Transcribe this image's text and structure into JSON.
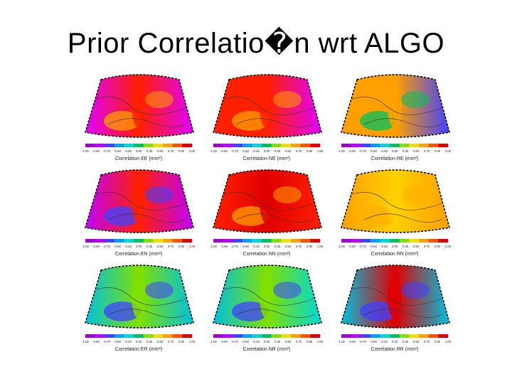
{
  "title": "Prior Correlatio�n wrt ALGO",
  "colorbar_ticks": [
    "-1.00",
    "-0.90",
    "-0.70",
    "-0.50",
    "-0.25",
    "0.00",
    "0.25",
    "0.50",
    "0.70",
    "0.90",
    "1.00"
  ],
  "colorbar_colors": [
    "#a000d0",
    "#c000ff",
    "#4040ff",
    "#00a0ff",
    "#00d8d8",
    "#00c060",
    "#80e000",
    "#f0e000",
    "#ffa000",
    "#ff5000",
    "#e00000"
  ],
  "chart_data": [
    {
      "type": "heatmap",
      "label": "Correlation EE (mm²)",
      "left_color": "#e000ff",
      "right_color": "#e000ff",
      "center_color": "#ff2000",
      "accent": "#ffa000"
    },
    {
      "type": "heatmap",
      "label": "Correlation NE (mm²)",
      "left_color": "#ff2000",
      "right_color": "#e000ff",
      "center_color": "#ff2000",
      "accent": "#ffa000"
    },
    {
      "type": "heatmap",
      "label": "Correlation RE (mm²)",
      "left_color": "#ffa000",
      "right_color": "#4040ff",
      "center_color": "#ffa000",
      "accent": "#00c060"
    },
    {
      "type": "heatmap",
      "label": "Correlation EN (mm²)",
      "left_color": "#c000ff",
      "right_color": "#c000ff",
      "center_color": "#ff2000",
      "accent": "#4040ff"
    },
    {
      "type": "heatmap",
      "label": "Correlation NN (mm²)",
      "left_color": "#ff2000",
      "right_color": "#ff2000",
      "center_color": "#e00000",
      "accent": "#ffa000"
    },
    {
      "type": "heatmap",
      "label": "Correlation RN (mm²)",
      "left_color": "#ffa000",
      "right_color": "#ffa000",
      "center_color": "#ffd000",
      "accent": "#ffb000"
    },
    {
      "type": "heatmap",
      "label": "Correlation ER (mm²)",
      "left_color": "#00c0e0",
      "right_color": "#00c0e0",
      "center_color": "#80e000",
      "accent": "#4040ff"
    },
    {
      "type": "heatmap",
      "label": "Correlation NR (mm²)",
      "left_color": "#00c0e0",
      "right_color": "#00d8d8",
      "center_color": "#80e000",
      "accent": "#4040ff"
    },
    {
      "type": "heatmap",
      "label": "Correlation RR (mm²)",
      "left_color": "#00c0e0",
      "right_color": "#00c0e0",
      "center_color": "#e00000",
      "accent": "#4040ff"
    }
  ]
}
